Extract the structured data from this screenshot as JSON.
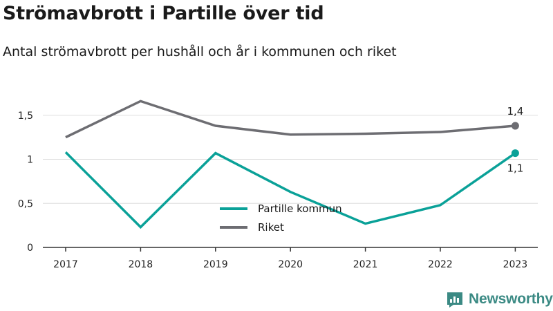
{
  "header": {
    "title": "Strömavbrott i Partille över tid",
    "subtitle": "Antal strömavbrott per hushåll och år i kommunen och riket"
  },
  "brand": {
    "name": "Newsworthy",
    "icon": "newsworthy-logo-icon"
  },
  "colors": {
    "kommun": "#0aa198",
    "riket": "#6d6d72",
    "grid": "#dddddd",
    "axis": "#333333"
  },
  "chart_data": {
    "type": "line",
    "categories": [
      "2017",
      "2018",
      "2019",
      "2020",
      "2021",
      "2022",
      "2023"
    ],
    "series": [
      {
        "name": "Partille kommun",
        "values": [
          1.08,
          0.23,
          1.07,
          0.63,
          0.27,
          0.48,
          1.07
        ],
        "end_label": "1,1"
      },
      {
        "name": "Riket",
        "values": [
          1.25,
          1.66,
          1.38,
          1.28,
          1.29,
          1.31,
          1.38
        ],
        "end_label": "1,4"
      }
    ],
    "ylim": [
      0,
      1.5
    ],
    "yticks": [
      {
        "value": 0,
        "label": "0"
      },
      {
        "value": 0.5,
        "label": "0,5"
      },
      {
        "value": 1,
        "label": "1"
      },
      {
        "value": 1.5,
        "label": "1,5"
      }
    ],
    "grid": true,
    "legend_position": "center"
  }
}
